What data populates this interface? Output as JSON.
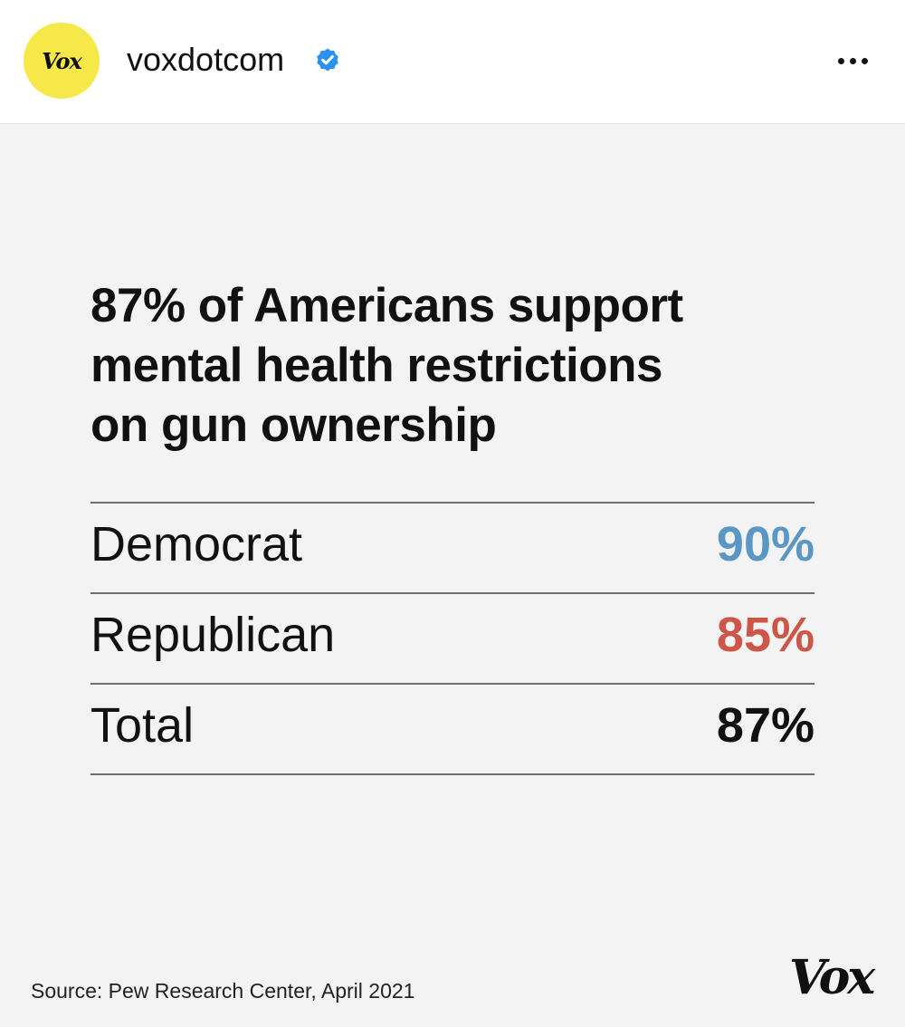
{
  "header": {
    "avatar_text": "Vox",
    "username": "voxdotcom",
    "verified_icon": "verified-badge-icon",
    "more_icon": "more-options-icon"
  },
  "post": {
    "headline_lines": [
      "87% of Americans support",
      "mental health restrictions",
      "on gun ownership"
    ],
    "rows": [
      {
        "label": "Democrat",
        "value": "90%",
        "color": "#5b97c4"
      },
      {
        "label": "Republican",
        "value": "85%",
        "color": "#cd5649"
      },
      {
        "label": "Total",
        "value": "87%",
        "color": "#111111"
      }
    ],
    "source": "Source: Pew Research Center, April 2021",
    "logo": "Vox"
  }
}
